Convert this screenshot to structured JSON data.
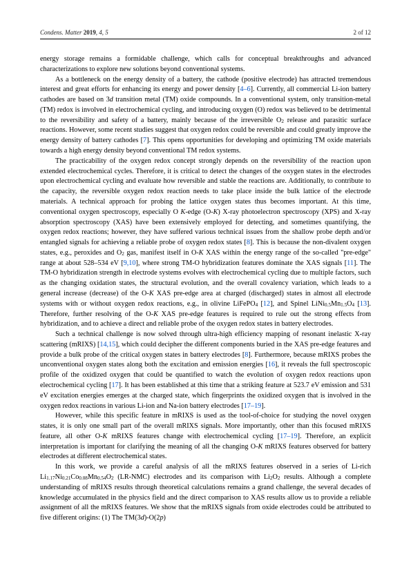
{
  "header": {
    "journal": "Condens. Matter",
    "year": "2019",
    "issue": ", 4, 5",
    "page": "2 of 12"
  },
  "paragraphs": {
    "p1": "energy storage remains a formidable challenge, which calls for conceptual breakthroughs and advanced characterizations to explore new solutions beyond conventional systems.",
    "p2a": "As a bottleneck on the energy density of a battery, the cathode (positive electrode) has attracted tremendous interest and great efforts for enhancing its energy and power density [",
    "p2b": "]. Currently, all commercial Li-ion battery cathodes are based on 3",
    "p2b2": " transition metal (TM) oxide compounds. In a conventional system, only transition-metal (TM) redox is involved in electrochemical cycling, and introducing oxygen (O) redox was believed to be detrimental to the reversibility and safety of a battery, mainly because of the irreversible O",
    "p2c": " release and parasitic surface reactions. However, some recent studies suggest that oxygen redox could be reversible and could greatly improve the energy density of battery cathodes [",
    "p2d": "]. This opens opportunities for developing and optimizing TM oxide materials towards a high energy density beyond conventional TM redox systems.",
    "p3a": "The practicability of the oxygen redox concept strongly depends on the reversibility of the reaction upon extended electrochemical cycles. Therefore, it is critical to detect the changes of the oxygen states in the electrodes upon electrochemical cycling and evaluate how reversible and stable the reactions are. Additionally, to contribute to the capacity, the reversible oxygen redox reaction needs to take place inside the bulk lattice of the electrode materials. A technical approach for probing the lattice oxygen states thus becomes important. At this time, conventional oxygen spectroscopy, especially O ",
    "p3b": "-edge (O-",
    "p3c": ") X-ray photoelectron spectroscopy (XPS) and X-ray absorption spectroscopy (XAS) have been extensively employed for detecting, and sometimes quantifying, the oxygen redox reactions; however, they have suffered various technical issues from the shallow probe depth and/or entangled signals for achieving a reliable probe of oxygen redox states [",
    "p3d": "]. This is because the non-divalent oxygen states, e.g., peroxides and O",
    "p3e": " gas, manifest itself in O-",
    "p3f": " XAS within the energy range of the so-called \"pre-edge\" range at about 528–534 eV [",
    "p3g": "], where strong TM-O hybridization features dominate the XAS signals [",
    "p3h": "]. The TM-O hybridization strength in electrode systems evolves with electrochemical cycling due to multiple factors, such as the changing oxidation states, the structural evolution, and the overall covalency variation, which leads to a general increase (decrease) of the O-",
    "p3i": " XAS pre-edge area at charged (discharged) states in almost all electrode systems with or without oxygen redox reactions, e.g., in olivine LiFePO",
    "p3j": " [",
    "p3k": "], and Spinel LiNi",
    "p3l": "Mn",
    "p3m": "O",
    "p3n": " [",
    "p3o": "]. Therefore, further resolving of the O-",
    "p3p": " XAS pre-edge features is required to rule out the strong effects from hybridization, and to achieve a direct and reliable probe of the oxygen redox states in battery electrodes.",
    "p4a": "Such a technical challenge is now solved through ultra-high efficiency mapping of resonant inelastic X-ray scattering (mRIXS) [",
    "p4b": "], which could decipher the different components buried in the XAS pre-edge features and provide a bulk probe of the critical oxygen states in battery electrodes [",
    "p4c": "]. Furthermore, because mRIXS probes the unconventional oxygen states along both the excitation and emission energies [",
    "p4d": "], it reveals the full spectroscopic profile of the oxidized oxygen that could be quantified to watch the evolution of oxygen redox reactions upon electrochemical cycling [",
    "p4e": "]. It has been established at this time that a striking feature at 523.7 eV emission and 531 eV excitation energies emerges at the charged state, which fingerprints the oxidized oxygen that is involved in the oxygen redox reactions in various Li-ion and Na-ion battery electrodes [",
    "p4f": "].",
    "p5a": "However, while this specific feature in mRIXS is used as the tool-of-choice for studying the novel oxygen states, it is only one small part of the overall mRIXS signals. More importantly, other than this focused mRIXS feature, all other O-",
    "p5b": " mRIXS features change with electrochemical cycling [",
    "p5c": "]. Therefore, an explicit interpretation is important for clarifying the meaning of all the changing O-",
    "p5d": " mRIXS features observed for battery electrodes at different electrochemical states.",
    "p6a": "In this work, we provide a careful analysis of all the mRIXS features observed in a series of Li-rich Li",
    "p6b": "Ni",
    "p6c": "Co",
    "p6d": "Mn",
    "p6e": "O",
    "p6f": " (LR-NMC) electrodes and its comparison with Li",
    "p6g": "O",
    "p6h": " results. Although a complete understanding of mRIXS results through theoretical calculations remains a grand challenge, the several decades of knowledge accumulated in the physics field and the direct comparison to XAS results allow us to provide a reliable assignment of all the mRIXS features. We show that the mRIXS signals from oxide electrodes could be attributed to five different origins: (1) The TM(3",
    "p6i": ")-O(2",
    "p6j": ")"
  },
  "refs": {
    "r4_6": "4–6",
    "r7": "7",
    "r8": "8",
    "r9_10": "9,10",
    "r11": "11",
    "r12": "12",
    "r13": "13",
    "r14_15": "14,15",
    "r16": "16",
    "r17": "17",
    "r17_19": "17–19"
  },
  "chem": {
    "o2": "2",
    "po4": "4",
    "ni05": "0.5",
    "mn15": "1.5",
    "o4": "4",
    "li117": "1.17",
    "ni021": "0.21",
    "co008": "0.08",
    "mn054": "0.54",
    "li2": "2"
  },
  "ital": {
    "K": "K",
    "d": "d",
    "p": "p"
  }
}
